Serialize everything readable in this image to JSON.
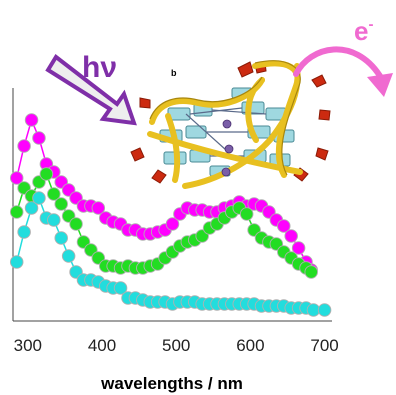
{
  "figure": {
    "photon_label": "hν",
    "electron_label": "e",
    "electron_charge": "-",
    "panel_letter": "b",
    "colors": {
      "photon_arrow": "#7f2fa8",
      "electron_arrow": "#f06ad0",
      "dna_backbone": "#e8c020",
      "base": "#9fd8e0",
      "cap": "#cc2a10",
      "ion": "#7a5ea8"
    }
  },
  "chart_data": {
    "type": "scatter",
    "xlabel": "wavelengths / nm",
    "ylabel": "",
    "title": "",
    "xlim": [
      280,
      710
    ],
    "ylim": [
      0,
      1
    ],
    "y_tick_labels_shown": false,
    "xticks": [
      300,
      400,
      500,
      600,
      700
    ],
    "xtick_labels": [
      "300",
      "400",
      "500",
      "600",
      "700"
    ],
    "grid": false,
    "connected_points": true,
    "series": [
      {
        "color": "#ff00ff",
        "marker": "circle",
        "x": [
          285,
          295,
          305,
          315,
          325,
          335,
          345,
          355,
          365,
          375,
          385,
          395,
          405,
          415,
          425,
          435,
          445,
          455,
          465,
          475,
          485,
          495,
          505,
          515,
          525,
          535,
          545,
          555,
          565,
          575,
          585,
          595,
          605,
          615,
          625,
          635,
          645,
          655,
          665,
          675,
          682
        ],
        "y": [
          0.67,
          0.83,
          0.96,
          0.87,
          0.74,
          0.7,
          0.65,
          0.61,
          0.57,
          0.53,
          0.53,
          0.52,
          0.47,
          0.45,
          0.44,
          0.41,
          0.41,
          0.39,
          0.39,
          0.4,
          0.41,
          0.44,
          0.49,
          0.52,
          0.51,
          0.51,
          0.5,
          0.5,
          0.52,
          0.53,
          0.55,
          0.53,
          0.54,
          0.53,
          0.5,
          0.46,
          0.43,
          0.38,
          0.32,
          0.25,
          0.21
        ]
      },
      {
        "color": "#22dd22",
        "marker": "circle",
        "x": [
          285,
          295,
          305,
          315,
          325,
          335,
          345,
          355,
          365,
          375,
          385,
          395,
          405,
          415,
          425,
          435,
          445,
          455,
          465,
          475,
          485,
          495,
          505,
          515,
          525,
          535,
          545,
          555,
          565,
          575,
          585,
          595,
          605,
          615,
          625,
          635,
          645,
          655,
          665,
          675,
          682
        ],
        "y": [
          0.5,
          0.62,
          0.58,
          0.65,
          0.69,
          0.59,
          0.54,
          0.48,
          0.44,
          0.35,
          0.31,
          0.27,
          0.23,
          0.23,
          0.22,
          0.23,
          0.22,
          0.22,
          0.23,
          0.24,
          0.27,
          0.3,
          0.33,
          0.35,
          0.36,
          0.38,
          0.42,
          0.44,
          0.47,
          0.5,
          0.52,
          0.49,
          0.41,
          0.37,
          0.35,
          0.34,
          0.3,
          0.27,
          0.24,
          0.22,
          0.2
        ]
      },
      {
        "color": "#22dddd",
        "marker": "circle",
        "x": [
          285,
          295,
          305,
          315,
          325,
          335,
          345,
          355,
          365,
          375,
          385,
          395,
          405,
          415,
          425,
          435,
          445,
          455,
          465,
          475,
          485,
          495,
          505,
          515,
          525,
          535,
          545,
          555,
          565,
          575,
          585,
          595,
          605,
          615,
          625,
          635,
          645,
          655,
          665,
          675,
          685,
          700
        ],
        "y": [
          0.25,
          0.4,
          0.52,
          0.57,
          0.47,
          0.46,
          0.37,
          0.28,
          0.2,
          0.16,
          0.16,
          0.15,
          0.13,
          0.12,
          0.12,
          0.07,
          0.07,
          0.06,
          0.05,
          0.05,
          0.05,
          0.04,
          0.05,
          0.05,
          0.05,
          0.04,
          0.04,
          0.04,
          0.04,
          0.04,
          0.04,
          0.04,
          0.04,
          0.03,
          0.03,
          0.03,
          0.03,
          0.02,
          0.02,
          0.02,
          0.01,
          0.01
        ]
      }
    ]
  }
}
